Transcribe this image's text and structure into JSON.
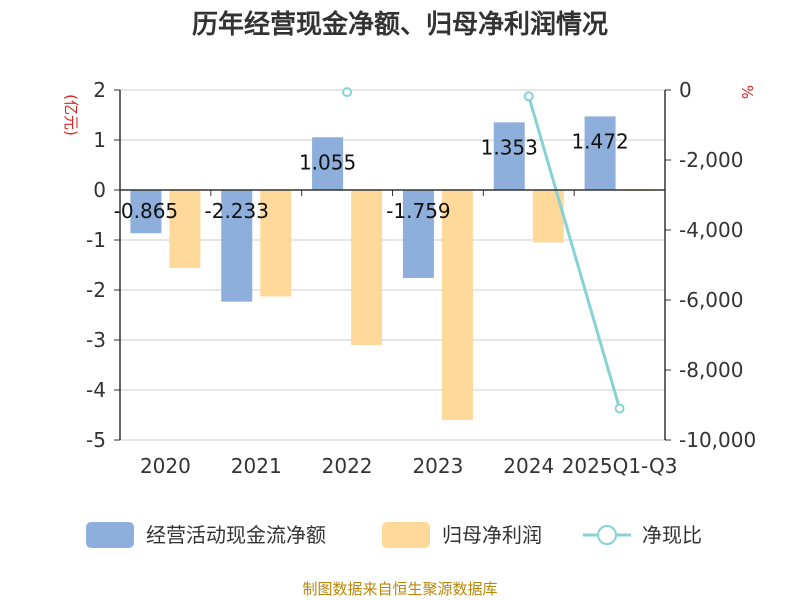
{
  "title": "历年经营现金净额、归母净利润情况",
  "left_unit": "(亿元)",
  "right_unit": "%",
  "source": "制图数据来自恒生聚源数据库",
  "colors": {
    "cashflow": "#8eaedb",
    "profit": "#ffd999",
    "ratio": "#86d2d6",
    "grid": "#cccccc",
    "axis": "#333333",
    "unit": "#e02020",
    "source": "#b8860b"
  },
  "chart_data": {
    "type": "bar",
    "categories": [
      "2020",
      "2021",
      "2022",
      "2023",
      "2024",
      "2025Q1-Q3"
    ],
    "series": [
      {
        "name": "经营活动现金流净额",
        "type": "bar",
        "axis": "left",
        "values": [
          -0.865,
          -2.233,
          1.055,
          -1.759,
          1.353,
          1.472
        ],
        "labels": [
          "-0.865",
          "-2.233",
          "1.055",
          "-1.759",
          "1.353",
          "1.472"
        ]
      },
      {
        "name": "归母净利润",
        "type": "bar",
        "axis": "left",
        "values": [
          -1.56,
          -2.13,
          -3.1,
          -4.6,
          -1.05,
          -0.02
        ]
      },
      {
        "name": "净现比",
        "type": "line",
        "axis": "right",
        "values": [
          null,
          null,
          -60,
          null,
          -180,
          -9100
        ]
      }
    ],
    "y_left": {
      "min": -5,
      "max": 2,
      "ticks": [
        "2",
        "1",
        "0",
        "-1",
        "-2",
        "-3",
        "-4",
        "-5"
      ],
      "tick_values": [
        2,
        1,
        0,
        -1,
        -2,
        -3,
        -4,
        -5
      ]
    },
    "y_right": {
      "min": -10000,
      "max": 0,
      "ticks": [
        "0",
        "-2,000",
        "-4,000",
        "-6,000",
        "-8,000",
        "-10,000"
      ],
      "tick_values": [
        0,
        -2000,
        -4000,
        -6000,
        -8000,
        -10000
      ]
    },
    "grid": true,
    "legend_position": "bottom"
  }
}
